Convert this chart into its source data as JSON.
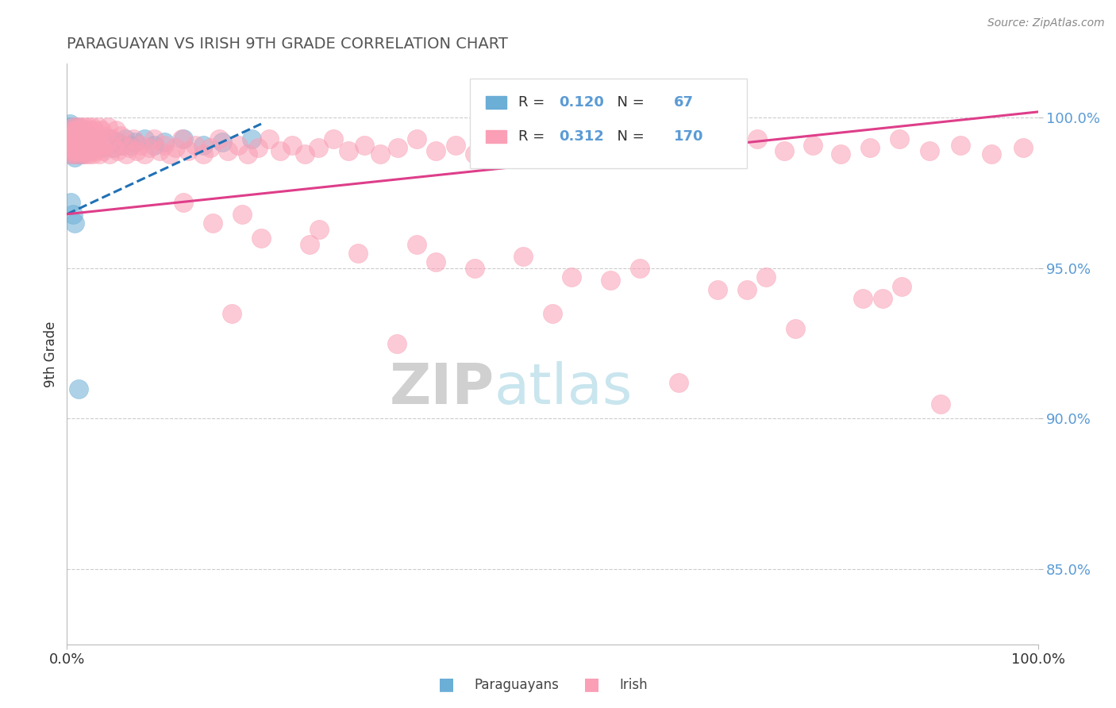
{
  "title": "PARAGUAYAN VS IRISH 9TH GRADE CORRELATION CHART",
  "source_text": "Source: ZipAtlas.com",
  "ylabel": "9th Grade",
  "y_tick_labels": [
    "85.0%",
    "90.0%",
    "95.0%",
    "100.0%"
  ],
  "y_tick_values": [
    0.85,
    0.9,
    0.95,
    1.0
  ],
  "x_range": [
    0.0,
    1.0
  ],
  "y_range": [
    0.825,
    1.018
  ],
  "legend_paraguayan_R": "0.120",
  "legend_paraguayan_N": "67",
  "legend_irish_R": "0.312",
  "legend_irish_N": "170",
  "color_paraguayan": "#6baed6",
  "color_irish": "#fa9fb5",
  "color_trendline_paraguayan": "#2171b5",
  "color_trendline_irish": "#de3e8a",
  "background_color": "#ffffff",
  "title_color": "#555555",
  "watermark_zip": "ZIP",
  "watermark_atlas": "atlas",
  "paraguayan_x": [
    0.002,
    0.003,
    0.003,
    0.004,
    0.004,
    0.005,
    0.005,
    0.006,
    0.006,
    0.007,
    0.007,
    0.008,
    0.008,
    0.009,
    0.009,
    0.01,
    0.01,
    0.011,
    0.011,
    0.012,
    0.012,
    0.013,
    0.013,
    0.014,
    0.014,
    0.015,
    0.015,
    0.016,
    0.016,
    0.017,
    0.017,
    0.018,
    0.019,
    0.02,
    0.021,
    0.022,
    0.023,
    0.024,
    0.025,
    0.026,
    0.027,
    0.028,
    0.03,
    0.032,
    0.034,
    0.036,
    0.038,
    0.04,
    0.042,
    0.045,
    0.048,
    0.052,
    0.056,
    0.06,
    0.065,
    0.07,
    0.08,
    0.09,
    0.1,
    0.12,
    0.14,
    0.16,
    0.19,
    0.004,
    0.006,
    0.008,
    0.012
  ],
  "paraguayan_y": [
    0.99,
    0.995,
    0.998,
    0.992,
    0.996,
    0.988,
    0.997,
    0.991,
    0.994,
    0.989,
    0.993,
    0.987,
    0.995,
    0.99,
    0.996,
    0.988,
    0.994,
    0.991,
    0.997,
    0.989,
    0.993,
    0.988,
    0.995,
    0.991,
    0.996,
    0.989,
    0.993,
    0.988,
    0.994,
    0.99,
    0.996,
    0.991,
    0.989,
    0.992,
    0.99,
    0.994,
    0.991,
    0.993,
    0.99,
    0.992,
    0.991,
    0.993,
    0.99,
    0.992,
    0.991,
    0.993,
    0.99,
    0.992,
    0.991,
    0.993,
    0.99,
    0.992,
    0.991,
    0.993,
    0.991,
    0.992,
    0.993,
    0.991,
    0.992,
    0.993,
    0.991,
    0.992,
    0.993,
    0.972,
    0.968,
    0.965,
    0.91
  ],
  "irish_x": [
    0.002,
    0.003,
    0.004,
    0.004,
    0.005,
    0.005,
    0.006,
    0.006,
    0.007,
    0.007,
    0.008,
    0.008,
    0.009,
    0.009,
    0.01,
    0.01,
    0.011,
    0.011,
    0.012,
    0.012,
    0.013,
    0.013,
    0.014,
    0.014,
    0.015,
    0.015,
    0.016,
    0.016,
    0.017,
    0.017,
    0.018,
    0.018,
    0.019,
    0.019,
    0.02,
    0.02,
    0.021,
    0.021,
    0.022,
    0.022,
    0.023,
    0.023,
    0.024,
    0.024,
    0.025,
    0.025,
    0.026,
    0.026,
    0.027,
    0.027,
    0.028,
    0.028,
    0.029,
    0.03,
    0.031,
    0.032,
    0.033,
    0.034,
    0.035,
    0.036,
    0.037,
    0.038,
    0.04,
    0.042,
    0.044,
    0.046,
    0.048,
    0.05,
    0.052,
    0.055,
    0.058,
    0.061,
    0.064,
    0.068,
    0.072,
    0.076,
    0.08,
    0.085,
    0.09,
    0.095,
    0.1,
    0.106,
    0.112,
    0.118,
    0.125,
    0.132,
    0.14,
    0.148,
    0.157,
    0.166,
    0.176,
    0.186,
    0.197,
    0.208,
    0.22,
    0.232,
    0.245,
    0.259,
    0.274,
    0.29,
    0.306,
    0.323,
    0.341,
    0.36,
    0.38,
    0.4,
    0.42,
    0.441,
    0.462,
    0.484,
    0.507,
    0.53,
    0.554,
    0.579,
    0.604,
    0.63,
    0.656,
    0.683,
    0.711,
    0.739,
    0.768,
    0.797,
    0.827,
    0.857,
    0.888,
    0.92,
    0.952,
    0.985,
    0.12,
    0.18,
    0.26,
    0.36,
    0.47,
    0.59,
    0.72,
    0.86,
    0.2,
    0.3,
    0.42,
    0.56,
    0.7,
    0.84,
    0.15,
    0.25,
    0.38,
    0.52,
    0.67,
    0.82,
    0.5,
    0.75,
    0.17,
    0.34,
    0.63,
    0.9
  ],
  "irish_y": [
    0.99,
    0.988,
    0.992,
    0.996,
    0.989,
    0.994,
    0.991,
    0.997,
    0.988,
    0.993,
    0.99,
    0.996,
    0.989,
    0.994,
    0.991,
    0.997,
    0.988,
    0.993,
    0.99,
    0.996,
    0.989,
    0.994,
    0.991,
    0.997,
    0.988,
    0.993,
    0.99,
    0.996,
    0.989,
    0.994,
    0.991,
    0.997,
    0.988,
    0.993,
    0.99,
    0.996,
    0.989,
    0.994,
    0.991,
    0.997,
    0.988,
    0.993,
    0.99,
    0.996,
    0.989,
    0.994,
    0.991,
    0.997,
    0.988,
    0.993,
    0.99,
    0.996,
    0.989,
    0.994,
    0.991,
    0.997,
    0.988,
    0.993,
    0.99,
    0.996,
    0.989,
    0.994,
    0.991,
    0.997,
    0.988,
    0.993,
    0.99,
    0.996,
    0.989,
    0.994,
    0.991,
    0.988,
    0.99,
    0.993,
    0.989,
    0.991,
    0.988,
    0.99,
    0.993,
    0.989,
    0.991,
    0.988,
    0.99,
    0.993,
    0.989,
    0.991,
    0.988,
    0.99,
    0.993,
    0.989,
    0.991,
    0.988,
    0.99,
    0.993,
    0.989,
    0.991,
    0.988,
    0.99,
    0.993,
    0.989,
    0.991,
    0.988,
    0.99,
    0.993,
    0.989,
    0.991,
    0.988,
    0.99,
    0.993,
    0.989,
    0.991,
    0.988,
    0.99,
    0.993,
    0.989,
    0.991,
    0.988,
    0.99,
    0.993,
    0.989,
    0.991,
    0.988,
    0.99,
    0.993,
    0.989,
    0.991,
    0.988,
    0.99,
    0.972,
    0.968,
    0.963,
    0.958,
    0.954,
    0.95,
    0.947,
    0.944,
    0.96,
    0.955,
    0.95,
    0.946,
    0.943,
    0.94,
    0.965,
    0.958,
    0.952,
    0.947,
    0.943,
    0.94,
    0.935,
    0.93,
    0.935,
    0.925,
    0.912,
    0.905
  ]
}
